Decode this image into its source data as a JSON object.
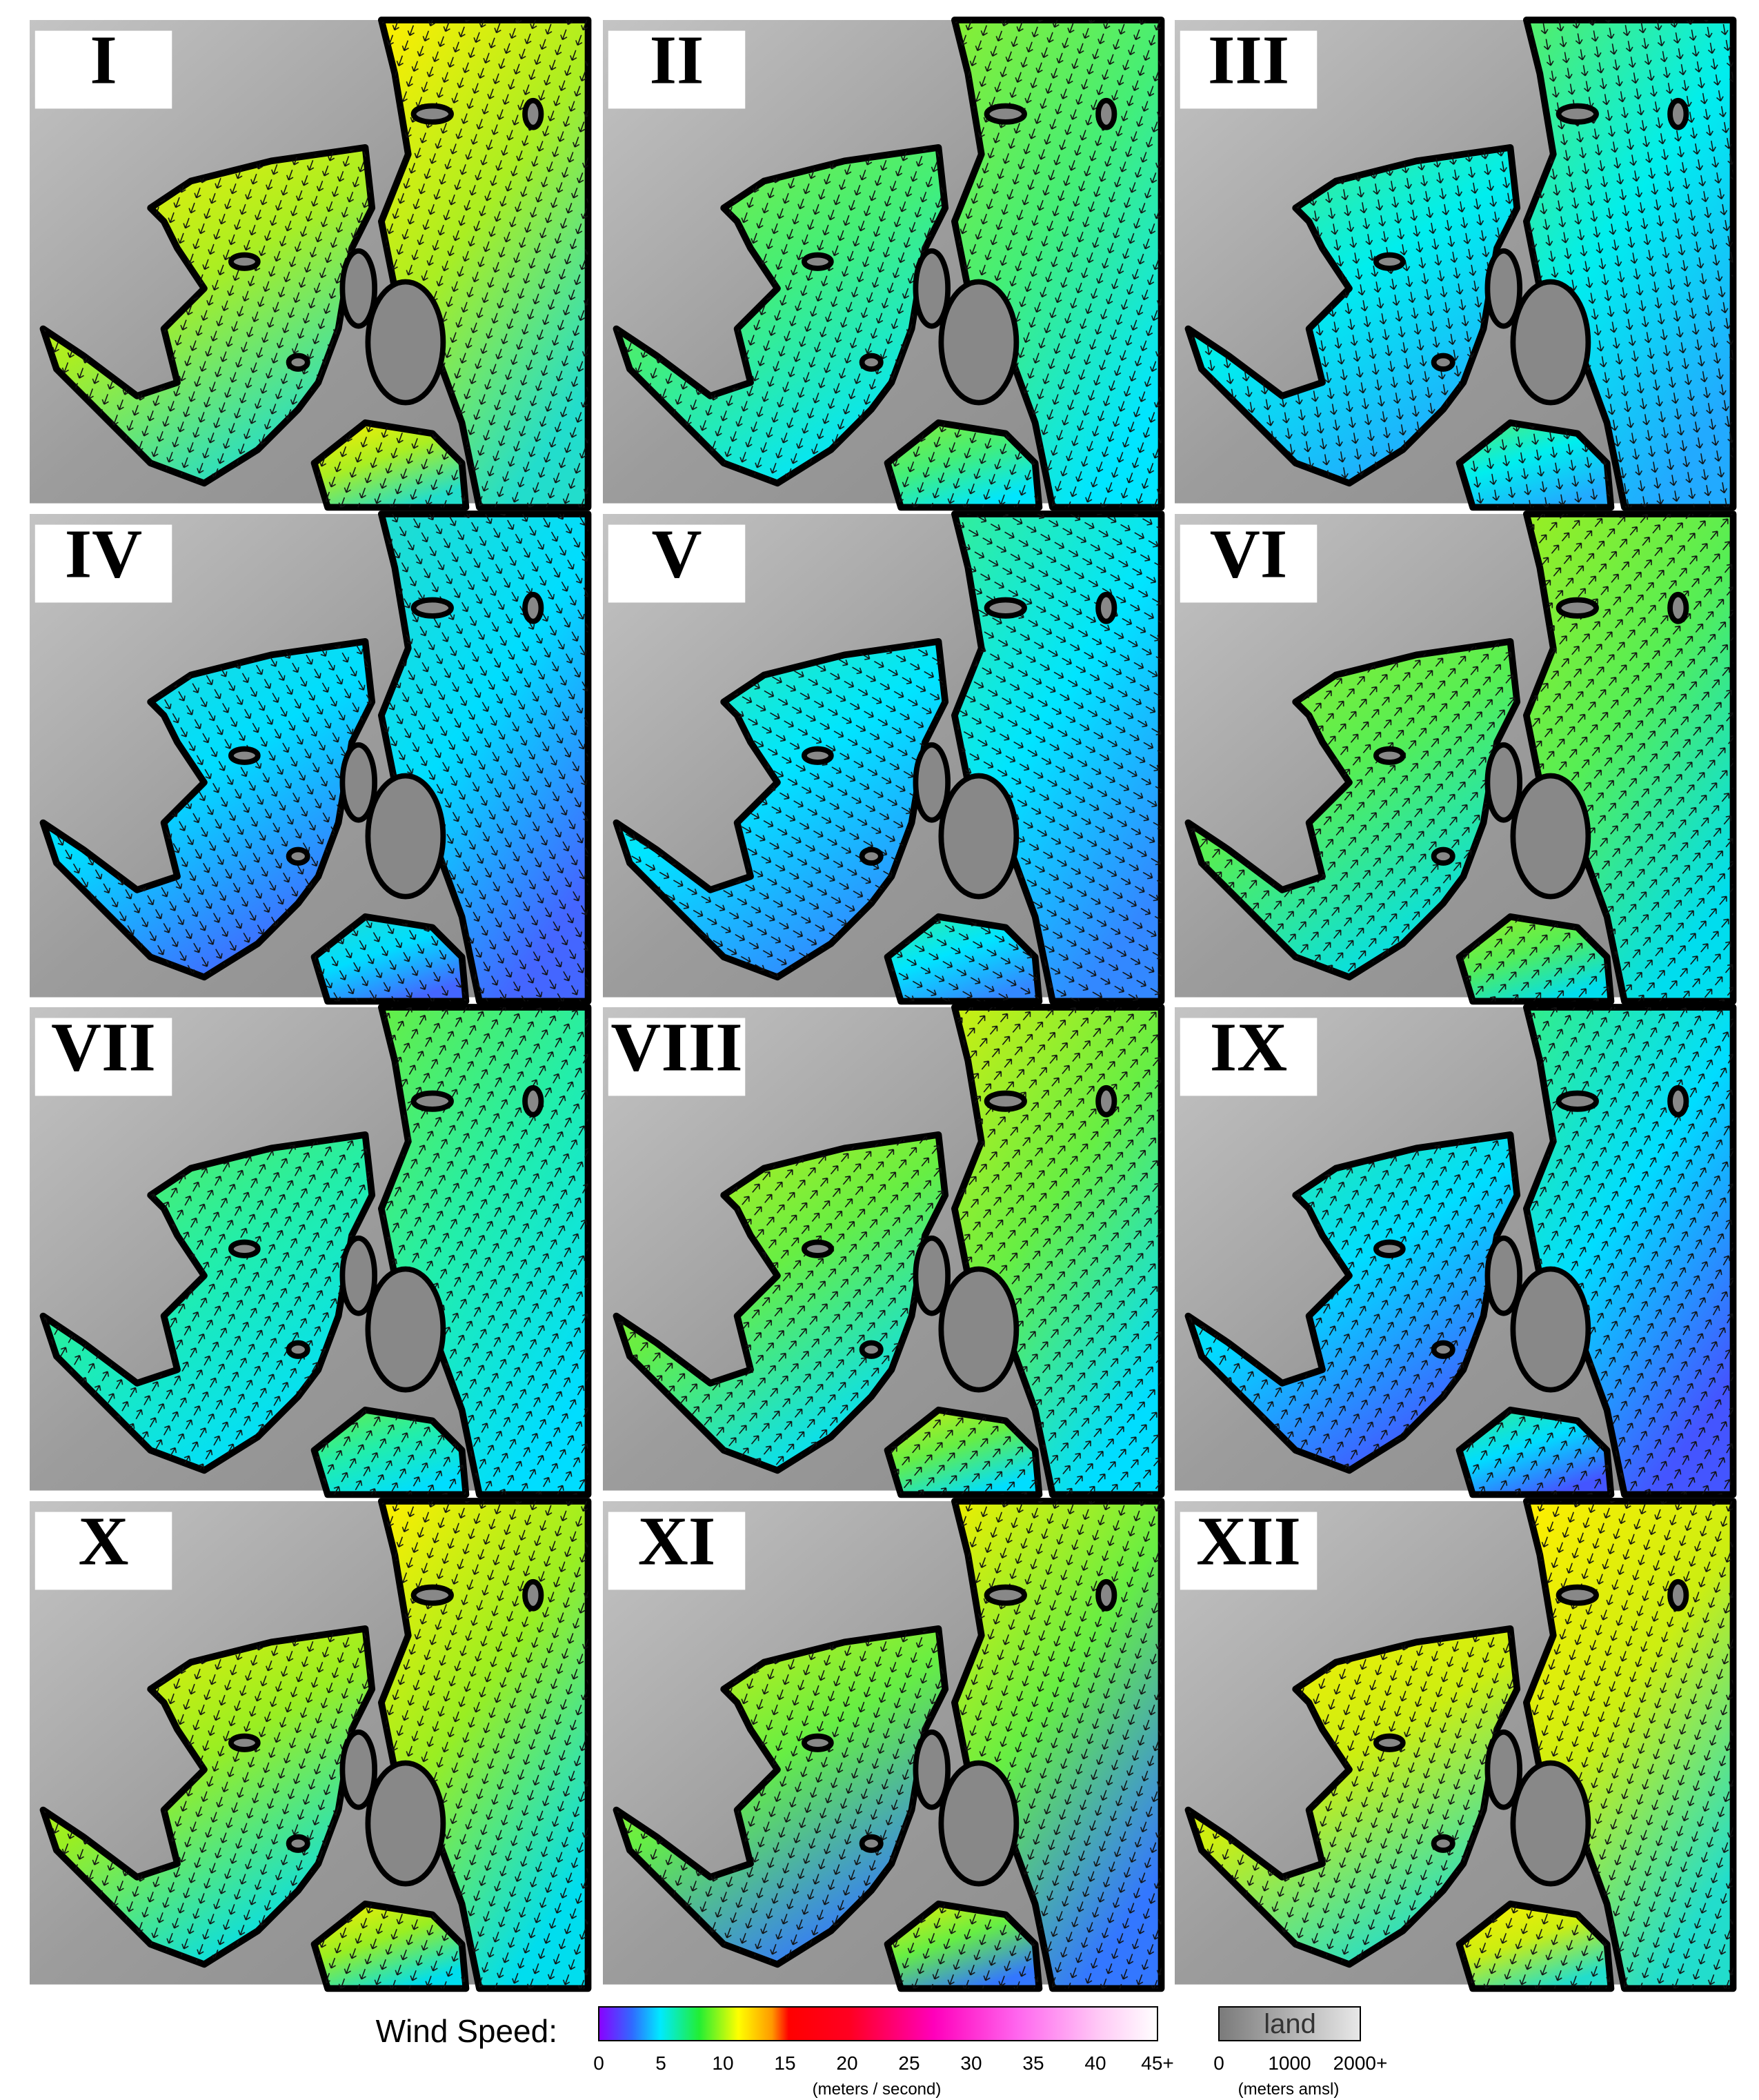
{
  "panels": [
    "I",
    "II",
    "III",
    "IV",
    "V",
    "VI",
    "VII",
    "VIII",
    "IX",
    "X",
    "XI",
    "XII"
  ],
  "legend": {
    "title": "Wind Speed:",
    "ticks": [
      "0",
      "5",
      "10",
      "15",
      "20",
      "25",
      "30",
      "35",
      "40",
      "45+"
    ],
    "units": "(meters / second)",
    "land": {
      "label": "land",
      "ticks": [
        "0",
        "1000",
        "2000+"
      ],
      "units": "(meters amsl)"
    }
  }
}
